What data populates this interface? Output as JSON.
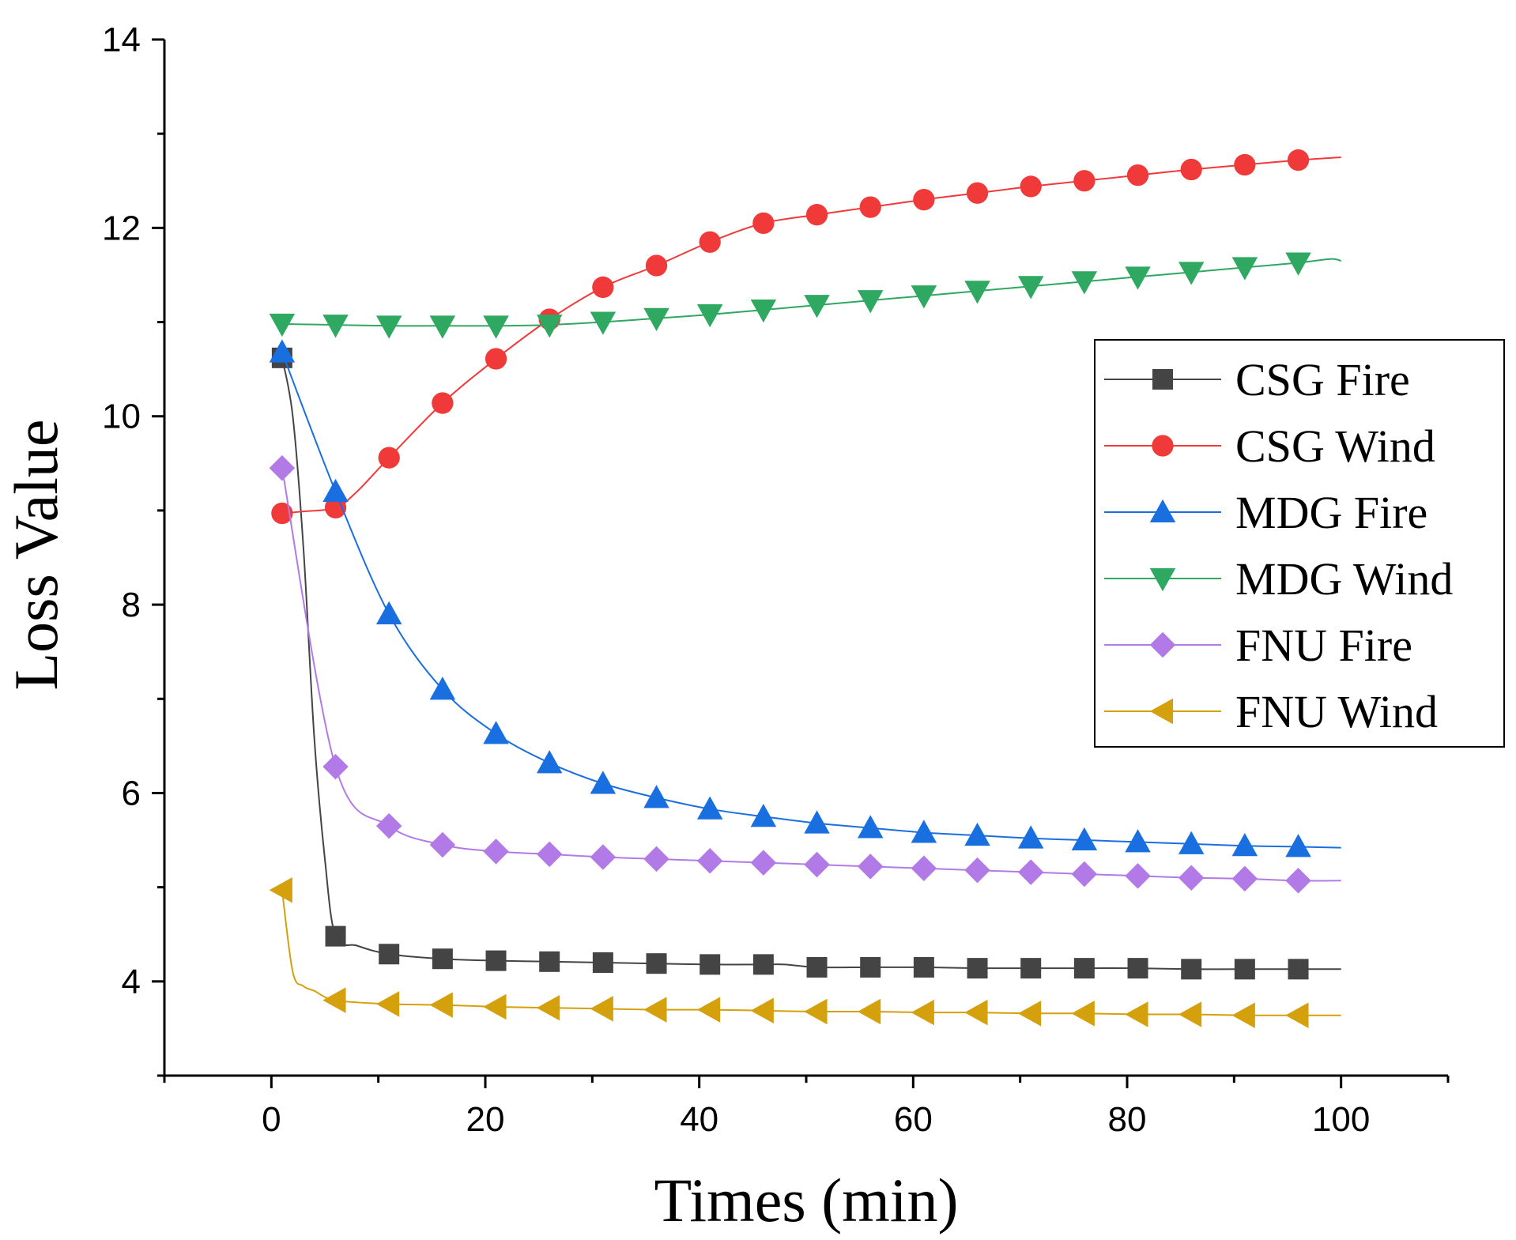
{
  "chart_data": {
    "type": "line",
    "title": "",
    "xlabel": "Times (min)",
    "ylabel": "Loss Value",
    "xlim": [
      -10,
      110
    ],
    "ylim": [
      3,
      14
    ],
    "xticks": [
      0,
      20,
      40,
      60,
      80,
      100
    ],
    "yticks": [
      4,
      6,
      8,
      10,
      12,
      14
    ],
    "grid": false,
    "legend_position": "right",
    "marker_x": [
      1,
      6,
      11,
      16,
      21,
      26,
      31,
      36,
      41,
      46,
      51,
      56,
      61,
      66,
      71,
      76,
      81,
      86,
      91,
      96
    ],
    "series": [
      {
        "name": "CSG Fire",
        "color": "#444444",
        "marker": "square",
        "values": [
          10.62,
          4.48,
          4.29,
          4.24,
          4.22,
          4.21,
          4.2,
          4.19,
          4.18,
          4.18,
          4.15,
          4.15,
          4.15,
          4.14,
          4.14,
          4.14,
          4.14,
          4.13,
          4.13,
          4.13
        ],
        "line_x": [
          1,
          2,
          3,
          4,
          5,
          6,
          8,
          11,
          16,
          21,
          26,
          31,
          36,
          41,
          46,
          48,
          51,
          56,
          61,
          66,
          71,
          76,
          81,
          86,
          91,
          96,
          100
        ],
        "line_y": [
          10.62,
          10.0,
          8.6,
          6.6,
          5.3,
          4.48,
          4.38,
          4.29,
          4.24,
          4.22,
          4.21,
          4.2,
          4.19,
          4.18,
          4.18,
          4.18,
          4.15,
          4.15,
          4.15,
          4.14,
          4.14,
          4.14,
          4.14,
          4.13,
          4.13,
          4.13,
          4.13
        ]
      },
      {
        "name": "CSG Wind",
        "color": "#f03a3a",
        "marker": "circle",
        "values": [
          8.97,
          9.03,
          9.56,
          10.14,
          10.61,
          11.03,
          11.37,
          11.6,
          11.85,
          12.05,
          12.14,
          12.22,
          12.3,
          12.37,
          12.44,
          12.5,
          12.56,
          12.62,
          12.67,
          12.72
        ],
        "line_x": [
          1,
          3,
          6,
          8,
          11,
          16,
          21,
          26,
          31,
          36,
          41,
          46,
          51,
          56,
          61,
          66,
          71,
          76,
          81,
          86,
          91,
          96,
          100
        ],
        "line_y": [
          8.97,
          8.99,
          9.03,
          9.2,
          9.56,
          10.14,
          10.61,
          11.03,
          11.37,
          11.6,
          11.85,
          12.05,
          12.14,
          12.22,
          12.3,
          12.37,
          12.44,
          12.5,
          12.56,
          12.62,
          12.67,
          12.72,
          12.75
        ]
      },
      {
        "name": "MDG Fire",
        "color": "#1a6fe0",
        "marker": "triangle-up",
        "values": [
          10.68,
          9.2,
          7.9,
          7.1,
          6.63,
          6.32,
          6.1,
          5.95,
          5.83,
          5.75,
          5.68,
          5.63,
          5.58,
          5.55,
          5.52,
          5.5,
          5.48,
          5.46,
          5.44,
          5.43
        ],
        "line_x": [
          1,
          6,
          11,
          16,
          21,
          26,
          31,
          36,
          41,
          46,
          51,
          56,
          61,
          66,
          71,
          76,
          81,
          86,
          91,
          96,
          100
        ],
        "line_y": [
          10.68,
          9.2,
          7.9,
          7.1,
          6.63,
          6.32,
          6.1,
          5.95,
          5.83,
          5.75,
          5.68,
          5.63,
          5.58,
          5.55,
          5.52,
          5.5,
          5.48,
          5.46,
          5.44,
          5.43,
          5.42
        ]
      },
      {
        "name": "MDG Wind",
        "color": "#2fa862",
        "marker": "triangle-down",
        "values": [
          10.98,
          10.97,
          10.96,
          10.96,
          10.96,
          10.97,
          11.0,
          11.04,
          11.08,
          11.13,
          11.18,
          11.23,
          11.28,
          11.33,
          11.38,
          11.43,
          11.48,
          11.53,
          11.58,
          11.63
        ],
        "line_x": [
          1,
          6,
          11,
          16,
          21,
          26,
          31,
          36,
          41,
          46,
          51,
          56,
          61,
          66,
          71,
          76,
          81,
          86,
          91,
          96,
          99,
          100
        ],
        "line_y": [
          10.98,
          10.97,
          10.96,
          10.96,
          10.96,
          10.97,
          11.0,
          11.04,
          11.08,
          11.13,
          11.18,
          11.23,
          11.28,
          11.33,
          11.38,
          11.43,
          11.48,
          11.53,
          11.58,
          11.63,
          11.67,
          11.65
        ]
      },
      {
        "name": "FNU Fire",
        "color": "#b27ae6",
        "marker": "diamond",
        "values": [
          9.45,
          6.28,
          5.65,
          5.45,
          5.38,
          5.35,
          5.32,
          5.3,
          5.28,
          5.26,
          5.24,
          5.22,
          5.2,
          5.18,
          5.16,
          5.14,
          5.12,
          5.1,
          5.09,
          5.07
        ],
        "line_x": [
          1,
          6,
          11,
          16,
          21,
          26,
          31,
          36,
          41,
          46,
          51,
          56,
          61,
          66,
          71,
          76,
          81,
          86,
          91,
          96,
          100
        ],
        "line_y": [
          9.45,
          6.28,
          5.65,
          5.45,
          5.38,
          5.35,
          5.32,
          5.3,
          5.28,
          5.26,
          5.24,
          5.22,
          5.2,
          5.18,
          5.16,
          5.14,
          5.12,
          5.1,
          5.09,
          5.07,
          5.07
        ]
      },
      {
        "name": "FNU Wind",
        "color": "#d4a00c",
        "marker": "triangle-left",
        "values": [
          4.97,
          3.8,
          3.76,
          3.75,
          3.73,
          3.72,
          3.71,
          3.7,
          3.7,
          3.69,
          3.68,
          3.68,
          3.67,
          3.67,
          3.66,
          3.66,
          3.65,
          3.65,
          3.64,
          3.64
        ],
        "line_x": [
          1,
          2,
          3,
          4,
          6,
          11,
          16,
          21,
          26,
          31,
          36,
          41,
          46,
          51,
          56,
          61,
          66,
          71,
          76,
          81,
          86,
          91,
          96,
          100
        ],
        "line_y": [
          4.97,
          4.1,
          3.95,
          3.9,
          3.8,
          3.76,
          3.75,
          3.73,
          3.72,
          3.71,
          3.7,
          3.7,
          3.69,
          3.68,
          3.68,
          3.67,
          3.67,
          3.66,
          3.66,
          3.65,
          3.65,
          3.64,
          3.64,
          3.64
        ]
      }
    ]
  }
}
